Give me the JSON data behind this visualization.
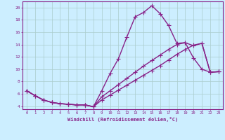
{
  "title": "",
  "xlabel": "Windchill (Refroidissement éolien,°C)",
  "ylabel": "",
  "bg_color": "#cceeff",
  "line_color": "#882288",
  "grid_color": "#aacccc",
  "xlim": [
    -0.5,
    23.5
  ],
  "ylim": [
    3.5,
    21.0
  ],
  "xticks": [
    0,
    1,
    2,
    3,
    4,
    5,
    6,
    7,
    8,
    9,
    10,
    11,
    12,
    13,
    14,
    15,
    16,
    17,
    18,
    19,
    20,
    21,
    22,
    23
  ],
  "yticks": [
    4,
    6,
    8,
    10,
    12,
    14,
    16,
    18,
    20
  ],
  "line1_x": [
    0,
    1,
    2,
    3,
    4,
    5,
    6,
    7,
    8,
    9,
    10,
    11,
    12,
    13,
    14,
    15,
    16,
    17,
    18,
    19,
    20,
    21,
    22,
    23
  ],
  "line1_y": [
    6.5,
    5.7,
    5.0,
    4.6,
    4.4,
    4.3,
    4.2,
    4.2,
    3.9,
    6.5,
    9.3,
    11.7,
    15.2,
    18.5,
    19.2,
    20.3,
    19.0,
    17.1,
    14.2,
    14.3,
    11.8,
    10.0,
    9.5,
    9.6
  ],
  "line2_x": [
    0,
    1,
    2,
    3,
    4,
    5,
    6,
    7,
    8,
    9,
    10,
    11,
    12,
    13,
    14,
    15,
    16,
    17,
    18,
    19,
    20,
    21,
    22,
    23
  ],
  "line2_y": [
    6.5,
    5.7,
    5.0,
    4.6,
    4.4,
    4.3,
    4.2,
    4.2,
    3.9,
    5.0,
    5.8,
    6.6,
    7.4,
    8.2,
    9.0,
    9.8,
    10.6,
    11.5,
    12.4,
    13.2,
    13.9,
    14.2,
    9.5,
    9.6
  ],
  "line3_x": [
    0,
    1,
    2,
    3,
    4,
    5,
    6,
    7,
    8,
    9,
    10,
    11,
    12,
    13,
    14,
    15,
    16,
    17,
    18,
    19,
    20,
    21,
    22,
    23
  ],
  "line3_y": [
    6.5,
    5.7,
    5.0,
    4.6,
    4.4,
    4.3,
    4.2,
    4.2,
    3.9,
    5.5,
    6.5,
    7.5,
    8.5,
    9.5,
    10.5,
    11.4,
    12.3,
    13.2,
    14.0,
    14.3,
    13.8,
    14.2,
    9.5,
    9.6
  ],
  "marker": "+",
  "markersize": 4,
  "linewidth": 1.0,
  "figsize": [
    3.2,
    2.0
  ],
  "dpi": 100
}
